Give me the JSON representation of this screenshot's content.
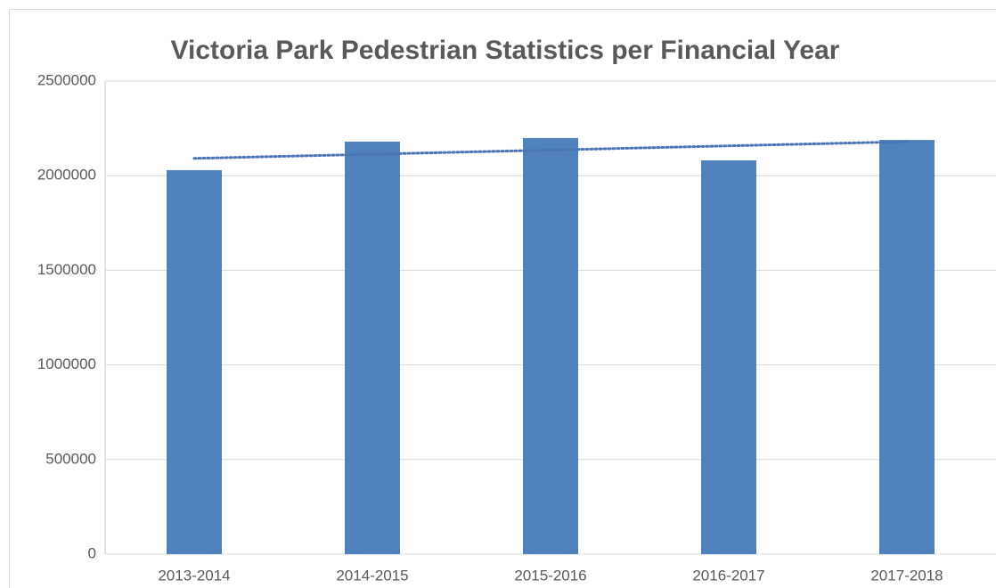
{
  "chart_data": {
    "type": "bar",
    "title": "Victoria Park Pedestrian Statistics per Financial Year",
    "categories": [
      "2013-2014",
      "2014-2015",
      "2015-2016",
      "2016-2017",
      "2017-2018"
    ],
    "values": [
      2029000,
      2180000,
      2199000,
      2081000,
      2189000
    ],
    "color": "#4f81bd",
    "ylim": [
      0,
      2500000
    ],
    "yticks": [
      0,
      500000,
      1000000,
      1500000,
      2000000,
      2500000
    ],
    "grid": true,
    "trendline": "linear",
    "trendline_color": "#4a74b8"
  }
}
